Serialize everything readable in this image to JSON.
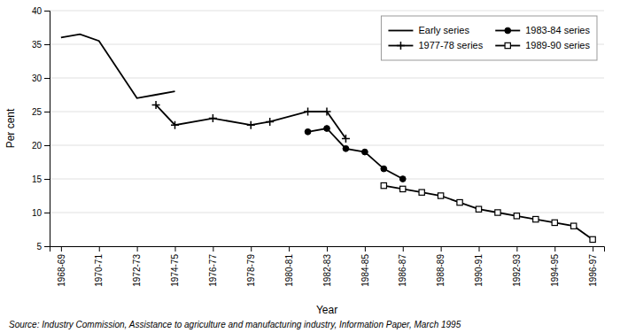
{
  "chart_data": {
    "type": "line",
    "x_label": "Year",
    "y_label": "Per cent",
    "source": "Source: Industry Commission, Assistance to agriculture and manufacturing industry, Information Paper, March 1995",
    "xlim": [
      -0.3,
      14.3
    ],
    "xticks": [
      {
        "value": 0,
        "label": "1968-69"
      },
      {
        "value": 1,
        "label": "1970-71"
      },
      {
        "value": 2,
        "label": "1972-73"
      },
      {
        "value": 3,
        "label": "1974-75"
      },
      {
        "value": 4,
        "label": "1976-77"
      },
      {
        "value": 5,
        "label": "1978-79"
      },
      {
        "value": 6,
        "label": "1980-81"
      },
      {
        "value": 7,
        "label": "1982-83"
      },
      {
        "value": 8,
        "label": "1984-85"
      },
      {
        "value": 9,
        "label": "1986-87"
      },
      {
        "value": 10,
        "label": "1988-89"
      },
      {
        "value": 11,
        "label": "1990-91"
      },
      {
        "value": 12,
        "label": "1992-93"
      },
      {
        "value": 13,
        "label": "1994-95"
      },
      {
        "value": 14,
        "label": "1996-97"
      }
    ],
    "ylim": [
      5,
      40
    ],
    "yticks": [
      5,
      10,
      15,
      20,
      25,
      30,
      35,
      40
    ],
    "grid": "y",
    "legend": "upper right",
    "series": [
      {
        "name": "Early series",
        "color": "#000000",
        "marker": "none",
        "line_style": "solid",
        "x": [
          0,
          0.5,
          1,
          2,
          2.5,
          3
        ],
        "values": [
          36.0,
          36.5,
          35.5,
          27.0,
          27.5,
          28.0
        ]
      },
      {
        "name": "1977-78 series",
        "color": "#000000",
        "marker": "plus",
        "line_style": "solid",
        "x": [
          2.5,
          3,
          4,
          5,
          5.5,
          6.5,
          7,
          7.5
        ],
        "values": [
          26.0,
          23.0,
          24.0,
          23.0,
          23.5,
          25.0,
          25.0,
          21.0
        ]
      },
      {
        "name": "1983-84 series",
        "color": "#000000",
        "marker": "circle",
        "line_style": "solid",
        "x": [
          6.5,
          7,
          7.5,
          8,
          8.5,
          9
        ],
        "values": [
          22.0,
          22.5,
          19.5,
          19.0,
          16.5,
          15.0
        ]
      },
      {
        "name": "1989-90 series",
        "color": "#000000",
        "marker": "open-square",
        "line_style": "solid",
        "x": [
          8.5,
          9,
          9.5,
          10,
          10.5,
          11,
          11.5,
          12,
          12.5,
          13,
          13.5,
          14
        ],
        "values": [
          14.0,
          13.5,
          13.0,
          12.5,
          11.5,
          10.5,
          10.0,
          9.5,
          9.0,
          8.5,
          8.0,
          6.0
        ]
      }
    ]
  }
}
